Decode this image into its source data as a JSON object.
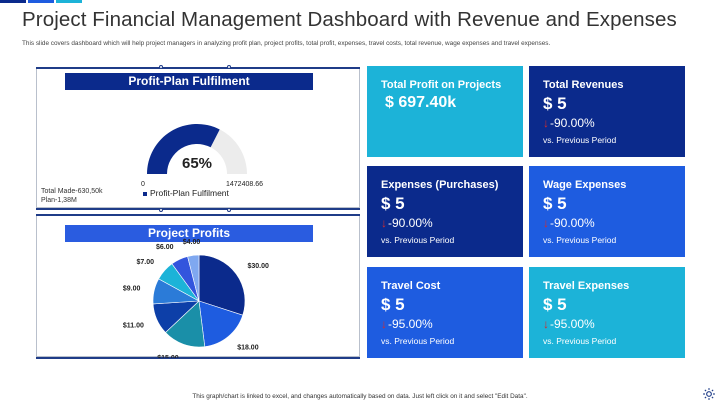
{
  "header": {
    "title": "Project Financial Management Dashboard with Revenue and Expenses",
    "subtitle": "This slide covers dashboard which will help project managers in analyzing profit plan, project profits, total profit, expenses, travel costs, total revenue, wage expenses and travel expenses."
  },
  "colors": {
    "navy": "#0b2a8c",
    "blue": "#1e5ce0",
    "cyan": "#1cb3d8",
    "down_arrow": "#d62a2a"
  },
  "profit_plan": {
    "heading": "Profit-Plan Fulfilment",
    "percent_label": "65%",
    "percent_value": 65,
    "min_label": "0",
    "max_label": "1472408.66",
    "total_made": "Total Made-630,50k",
    "plan": "Plan-1,38M",
    "legend": "Profit-Plan Fulfilment"
  },
  "project_profits": {
    "heading": "Project Profits"
  },
  "chart_data": {
    "type": "pie",
    "title": "Project Profits",
    "values": [
      30,
      18,
      15,
      11,
      9,
      7,
      6,
      4
    ],
    "labels": [
      "$30.00",
      "$18.00",
      "$15.00",
      "$11.00",
      "$9.00",
      "$7.00",
      "$6.00",
      "$4.00"
    ],
    "colors": [
      "#0b2a8c",
      "#1e5ce0",
      "#1a8fa8",
      "#0d3fa8",
      "#2b7bd8",
      "#1cb3d8",
      "#3355dd",
      "#7fa8f0"
    ]
  },
  "cards": {
    "total_profit": {
      "label": "Total Profit on Projects",
      "value": "$ 697.40k"
    },
    "total_revenues": {
      "label": "Total Revenues",
      "value": "$ 5",
      "change": "-90.00%",
      "note": "vs. Previous Period"
    },
    "expenses": {
      "label": "Expenses (Purchases)",
      "value": "$ 5",
      "change": "-90.00%",
      "note": "vs. Previous Period"
    },
    "wage_expenses": {
      "label": "Wage Expenses",
      "value": "$ 5",
      "change": "-90.00%",
      "note": "vs. Previous Period"
    },
    "travel_cost": {
      "label": "Travel Cost",
      "value": "$ 5",
      "change": "-95.00%",
      "note": "vs. Previous Period"
    },
    "travel_expenses": {
      "label": "Travel Expenses",
      "value": "$ 5",
      "change": "-95.00%",
      "note": "vs. Previous Period"
    }
  },
  "footer": {
    "note": "This graph/chart is linked to excel, and changes automatically based on data. Just left click on it and select \"Edit Data\"."
  },
  "icons": {
    "settings": "gear-icon",
    "down": "arrow-down-icon"
  }
}
